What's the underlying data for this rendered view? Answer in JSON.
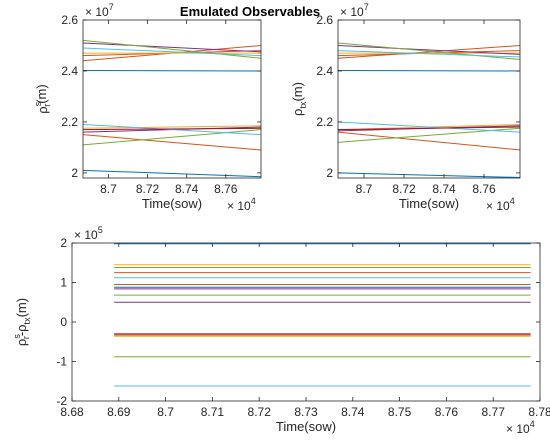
{
  "figure_title": "Emulated Observables",
  "chart_data": [
    {
      "id": "p1",
      "type": "line",
      "xlabel": "Time(sow)",
      "ylabel_main": "ρ",
      "ylabel_sup": "s",
      "ylabel_sub": "r",
      "ylabel_unit": "(m)",
      "x_multiplier": "× 10",
      "x_multiplier_exp": "4",
      "y_multiplier": "× 10",
      "y_multiplier_exp": "7",
      "xlim": [
        8.687,
        8.778
      ],
      "ylim": [
        1.98,
        2.6
      ],
      "xticks": [
        8.7,
        8.72,
        8.74,
        8.76
      ],
      "xtick_labels": [
        "8.7",
        "8.72",
        "8.74",
        "8.76"
      ],
      "yticks": [
        2.0,
        2.2,
        2.4,
        2.6
      ],
      "ytick_labels": [
        "2",
        "2.2",
        "2.4",
        "2.6"
      ],
      "x": [
        8.687,
        8.778
      ],
      "series": [
        {
          "values": [
            2.402,
            2.4
          ],
          "color": "#0072BD"
        },
        {
          "values": [
            2.01,
            1.985
          ],
          "color": "#0072BD"
        },
        {
          "values": [
            2.46,
            2.48
          ],
          "color": "#D95319"
        },
        {
          "values": [
            2.15,
            2.09
          ],
          "color": "#D95319"
        },
        {
          "values": [
            2.44,
            2.5
          ],
          "color": "#D95319"
        },
        {
          "values": [
            2.47,
            2.47
          ],
          "color": "#EDB120"
        },
        {
          "values": [
            2.175,
            2.185
          ],
          "color": "#EDB120"
        },
        {
          "values": [
            2.51,
            2.475
          ],
          "color": "#7E2F8E"
        },
        {
          "values": [
            2.16,
            2.18
          ],
          "color": "#7E2F8E"
        },
        {
          "values": [
            2.52,
            2.45
          ],
          "color": "#77AC30"
        },
        {
          "values": [
            2.11,
            2.17
          ],
          "color": "#77AC30"
        },
        {
          "values": [
            2.19,
            2.15
          ],
          "color": "#4DBEEE"
        },
        {
          "values": [
            2.49,
            2.46
          ],
          "color": "#4DBEEE"
        },
        {
          "values": [
            2.17,
            2.175
          ],
          "color": "#A2142F"
        }
      ]
    },
    {
      "id": "p2",
      "type": "line",
      "xlabel": "Time(sow)",
      "ylabel_main": "ρ",
      "ylabel_sup": "",
      "ylabel_sub": "tx",
      "ylabel_unit": "(m)",
      "x_multiplier": "× 10",
      "x_multiplier_exp": "4",
      "y_multiplier": "× 10",
      "y_multiplier_exp": "7",
      "xlim": [
        8.687,
        8.778
      ],
      "ylim": [
        1.98,
        2.6
      ],
      "xticks": [
        8.7,
        8.72,
        8.74,
        8.76
      ],
      "xtick_labels": [
        "8.7",
        "8.72",
        "8.74",
        "8.76"
      ],
      "yticks": [
        2.0,
        2.2,
        2.4,
        2.6
      ],
      "ytick_labels": [
        "2",
        "2.2",
        "2.4",
        "2.6"
      ],
      "x": [
        8.687,
        8.778
      ],
      "series": [
        {
          "values": [
            2.402,
            2.4
          ],
          "color": "#0072BD"
        },
        {
          "values": [
            2.0,
            1.982
          ],
          "color": "#0072BD"
        },
        {
          "values": [
            2.45,
            2.5
          ],
          "color": "#D95319"
        },
        {
          "values": [
            2.16,
            2.09
          ],
          "color": "#D95319"
        },
        {
          "values": [
            2.46,
            2.48
          ],
          "color": "#D95319"
        },
        {
          "values": [
            2.47,
            2.47
          ],
          "color": "#EDB120"
        },
        {
          "values": [
            2.17,
            2.19
          ],
          "color": "#EDB120"
        },
        {
          "values": [
            2.5,
            2.465
          ],
          "color": "#7E2F8E"
        },
        {
          "values": [
            2.165,
            2.185
          ],
          "color": "#7E2F8E"
        },
        {
          "values": [
            2.51,
            2.445
          ],
          "color": "#77AC30"
        },
        {
          "values": [
            2.12,
            2.175
          ],
          "color": "#77AC30"
        },
        {
          "values": [
            2.2,
            2.16
          ],
          "color": "#4DBEEE"
        },
        {
          "values": [
            2.48,
            2.455
          ],
          "color": "#4DBEEE"
        },
        {
          "values": [
            2.17,
            2.18
          ],
          "color": "#A2142F"
        }
      ]
    },
    {
      "id": "p3",
      "type": "line",
      "xlabel": "Time(sow)",
      "ylabel_main": "ρ",
      "ylabel_sup": "s",
      "ylabel_sub": "r",
      "ylabel_minus": "-ρ",
      "ylabel_sub2": "tx",
      "ylabel_unit": "(m)",
      "x_multiplier": "× 10",
      "x_multiplier_exp": "4",
      "y_multiplier": "× 10",
      "y_multiplier_exp": "5",
      "xlim": [
        8.68,
        8.78
      ],
      "ylim": [
        -2,
        2
      ],
      "xticks": [
        8.68,
        8.69,
        8.7,
        8.71,
        8.72,
        8.73,
        8.74,
        8.75,
        8.76,
        8.77,
        8.78
      ],
      "xtick_labels": [
        "8.68",
        "8.69",
        "8.7",
        "8.71",
        "8.72",
        "8.73",
        "8.74",
        "8.75",
        "8.76",
        "8.77",
        "8.78"
      ],
      "yticks": [
        -2,
        -1,
        0,
        1,
        2
      ],
      "ytick_labels": [
        "-2",
        "-1",
        "0",
        "1",
        "2"
      ],
      "x": [
        8.689,
        8.778
      ],
      "series": [
        {
          "values": [
            1.98,
            1.98
          ],
          "color": "#0072BD"
        },
        {
          "values": [
            1.45,
            1.45
          ],
          "color": "#EDB120"
        },
        {
          "values": [
            1.38,
            1.38
          ],
          "color": "#77AC30"
        },
        {
          "values": [
            1.25,
            1.25
          ],
          "color": "#D95319"
        },
        {
          "values": [
            1.12,
            1.12
          ],
          "color": "#4DBEEE"
        },
        {
          "values": [
            0.95,
            0.95
          ],
          "color": "#D95319"
        },
        {
          "values": [
            0.88,
            0.88
          ],
          "color": "#0072BD"
        },
        {
          "values": [
            0.84,
            0.84
          ],
          "color": "#7E2F8E"
        },
        {
          "values": [
            0.68,
            0.68
          ],
          "color": "#77AC30"
        },
        {
          "values": [
            0.5,
            0.5
          ],
          "color": "#7E2F8E"
        },
        {
          "values": [
            -0.3,
            -0.3
          ],
          "color": "#A2142F"
        },
        {
          "values": [
            -0.33,
            -0.33
          ],
          "color": "#D95319"
        },
        {
          "values": [
            -0.36,
            -0.36
          ],
          "color": "#EDB120"
        },
        {
          "values": [
            -0.88,
            -0.88
          ],
          "color": "#77AC30"
        },
        {
          "values": [
            -1.62,
            -1.62
          ],
          "color": "#4DBEEE"
        }
      ]
    }
  ]
}
